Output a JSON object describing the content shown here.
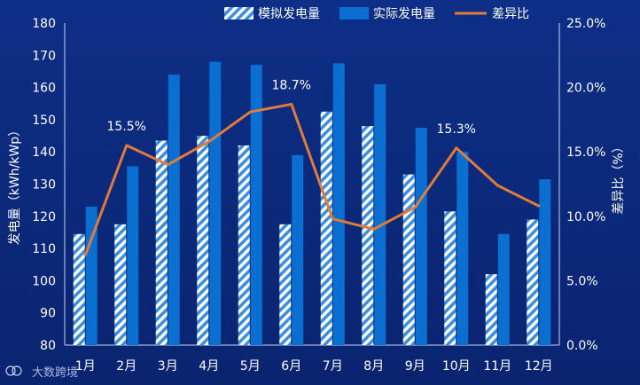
{
  "chart_data": {
    "type": "bar",
    "categories": [
      "1月",
      "2月",
      "3月",
      "4月",
      "5月",
      "6月",
      "7月",
      "8月",
      "9月",
      "10月",
      "11月",
      "12月"
    ],
    "series": [
      {
        "name": "模拟发电量",
        "kind": "bar",
        "axis": "left",
        "pattern": "hatch",
        "values": [
          114.5,
          117.5,
          143.5,
          145,
          142,
          117.5,
          152.5,
          148,
          133,
          121.5,
          102,
          119
        ]
      },
      {
        "name": "实际发电量",
        "kind": "bar",
        "axis": "left",
        "color": "#0a6fd1",
        "values": [
          123,
          135.5,
          164,
          168,
          167,
          139,
          167.5,
          161,
          147.5,
          140,
          114.5,
          131.5
        ]
      },
      {
        "name": "差异比",
        "kind": "line",
        "axis": "right",
        "color": "#e07b39",
        "values": [
          7.0,
          15.5,
          14.0,
          15.8,
          18.1,
          18.7,
          9.8,
          9.0,
          10.7,
          15.3,
          12.4,
          10.8
        ]
      }
    ],
    "annotations": [
      {
        "category": "2月",
        "text": "15.5%"
      },
      {
        "category": "6月",
        "text": "18.7%"
      },
      {
        "category": "10月",
        "text": "15.3%"
      }
    ],
    "ylabel": "发电量（kWh/kWp）",
    "ylim": [
      80,
      180
    ],
    "yticks": [
      "80",
      "90",
      "100",
      "110",
      "120",
      "130",
      "140",
      "150",
      "160",
      "170",
      "180"
    ],
    "y2label": "差异比（%）",
    "y2lim": [
      0,
      25
    ],
    "y2ticks": [
      "0.0%",
      "5.0%",
      "10.0%",
      "15.0%",
      "20.0%",
      "25.0%"
    ],
    "legend_position": "top",
    "grid": false
  },
  "watermark": {
    "text": "大数跨境"
  },
  "colors": {
    "background": "#0c2c80",
    "hatch": "#3a8ee0",
    "text": "#ffffff"
  }
}
